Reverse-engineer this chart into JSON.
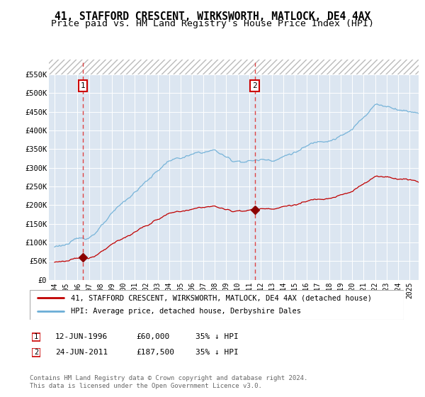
{
  "title": "41, STAFFORD CRESCENT, WIRKSWORTH, MATLOCK, DE4 4AX",
  "subtitle": "Price paid vs. HM Land Registry's House Price Index (HPI)",
  "legend_line1": "41, STAFFORD CRESCENT, WIRKSWORTH, MATLOCK, DE4 4AX (detached house)",
  "legend_line2": "HPI: Average price, detached house, Derbyshire Dales",
  "annotation1": [
    "1",
    "12-JUN-1996",
    "£60,000",
    "35% ↓ HPI"
  ],
  "annotation2": [
    "2",
    "24-JUN-2011",
    "£187,500",
    "35% ↓ HPI"
  ],
  "footer": "Contains HM Land Registry data © Crown copyright and database right 2024.\nThis data is licensed under the Open Government Licence v3.0.",
  "marker1_year": 1996.45,
  "marker1_price": 60000,
  "marker2_year": 2011.48,
  "marker2_price": 187500,
  "hpi_color": "#6baed6",
  "price_color": "#c00000",
  "marker_color": "#8b0000",
  "vline_color": "#e06060",
  "background_color": "#dce6f1",
  "yticks": [
    0,
    50000,
    100000,
    150000,
    200000,
    250000,
    300000,
    350000,
    400000,
    450000,
    500000,
    550000
  ],
  "title_fontsize": 10.5,
  "subtitle_fontsize": 9.5
}
